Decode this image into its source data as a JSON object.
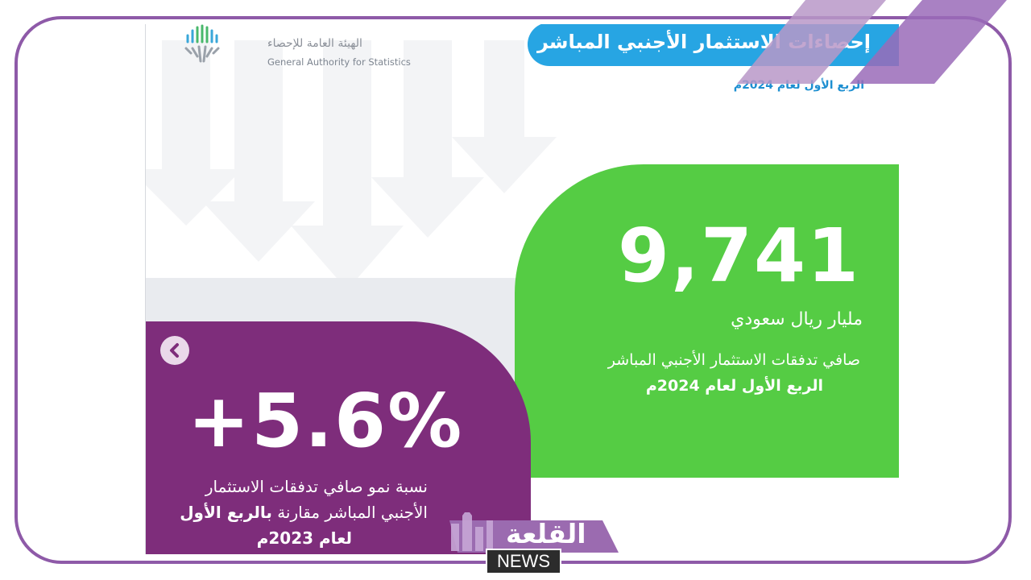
{
  "header": {
    "logo_ar": "الهيئة العامة للإحصاء",
    "logo_en": "General Authority for Statistics",
    "title": "إحصاءات الاستثمار الأجنبي المباشر",
    "subtitle": "الربع الأول لعام 2024م"
  },
  "green_card": {
    "value": "9,741",
    "unit": "مليار ريال سعودي",
    "description": "صافي تدفقات الاستثمار الأجنبي المباشر",
    "period": "الربع الأول لعام 2024م"
  },
  "purple_card": {
    "value": "+5.6%",
    "line1": "نسبة نمو صافي تدفقات الاستثمار",
    "line2_regular": "الأجنبي المباشر مقارنة",
    "line2_bold": "بالربع الأول",
    "line3": "لعام 2023م",
    "nav_icon": "chevron-left-icon"
  },
  "watermark": {
    "brand_ar": "القلعة",
    "brand_en": "NEWS"
  },
  "colors": {
    "frame": "#8e5aa8",
    "title_blue": "#27a5e3",
    "green": "#55cc44",
    "purple": "#7e2d7b"
  }
}
